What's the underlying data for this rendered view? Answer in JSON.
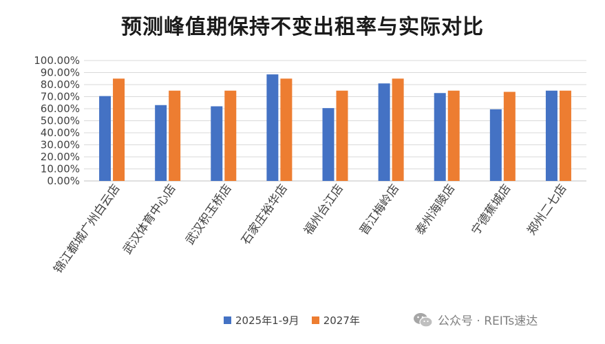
{
  "chart_data": {
    "type": "bar",
    "title": "预测峰值期保持不变出租率与实际对比",
    "categories": [
      "锦江都城广州白云店",
      "武汉体育中心店",
      "武汉积玉桥店",
      "石家庄裕华店",
      "福州台江店",
      "晋江梅岭店",
      "泰州海陵店",
      "宁德蕉城店",
      "郑州二七店"
    ],
    "series": [
      {
        "name": "2025年1-9月",
        "color": "#4472C4",
        "values": [
          70.5,
          63.0,
          62.0,
          88.5,
          60.5,
          81.0,
          73.0,
          59.5,
          75.0
        ]
      },
      {
        "name": "2027年",
        "color": "#ED7D31",
        "values": [
          85.0,
          75.0,
          75.0,
          85.0,
          75.0,
          85.0,
          75.0,
          74.0,
          75.0
        ]
      }
    ],
    "ylim": [
      0,
      100
    ],
    "yticks": [
      "0.00%",
      "10.00%",
      "20.00%",
      "30.00%",
      "40.00%",
      "50.00%",
      "60.00%",
      "70.00%",
      "80.00%",
      "90.00%",
      "100.00%"
    ],
    "grid": true,
    "legend_position": "bottom"
  },
  "watermark": {
    "text": "公众号 · REITs速达",
    "icon": "wechat-icon"
  }
}
